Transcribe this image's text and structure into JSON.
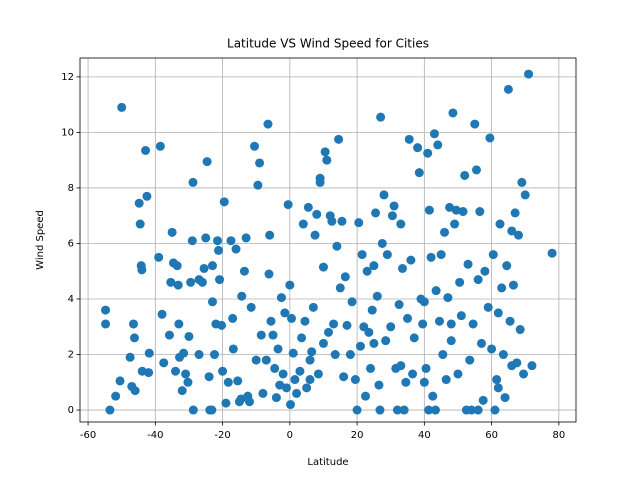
{
  "chart_data": {
    "type": "scatter",
    "title": "Latitude VS Wind Speed for Cities",
    "x_label": "Latitude",
    "y_label": "Wind Speed",
    "color": "#1f77b4",
    "grid": true,
    "xlim": [
      -62.4,
      85.1
    ],
    "ylim": [
      -0.43,
      12.68
    ],
    "xticks": [
      -60,
      -40,
      -20,
      0,
      20,
      40,
      60,
      80
    ],
    "yticks": [
      0,
      2,
      4,
      6,
      8,
      10,
      12
    ],
    "x": [
      -54.8,
      -54.8,
      -53.5,
      -51.8,
      -50.5,
      -50,
      -47.5,
      -47,
      -46.5,
      -46.2,
      -46,
      -44.8,
      -44.5,
      -44.2,
      -44,
      -43.9,
      -42.9,
      -42.5,
      -42,
      -41.8,
      -39,
      -38.5,
      -38,
      -37.5,
      -35.8,
      -35.4,
      -35,
      -34.6,
      -34,
      -33.5,
      -33.2,
      -33,
      -32.8,
      -32,
      -31.6,
      -31,
      -30.3,
      -30,
      -29.5,
      -29,
      -28.8,
      -28.7,
      -27,
      -26,
      -25.5,
      -25,
      -24.6,
      -24,
      -23.8,
      -23.2,
      -23,
      -22.4,
      -22,
      -21.5,
      -21.2,
      -20.9,
      -20.3,
      -20,
      -19.5,
      -19,
      -18.3,
      -17.5,
      -17,
      -16.8,
      -16,
      -15.5,
      -15,
      -14.5,
      -14.3,
      -13.5,
      -13,
      -12.5,
      -11.5,
      -10.5,
      -10,
      -9.5,
      -9,
      -8.5,
      -8,
      -7,
      -6.5,
      -6.2,
      -6,
      -5.6,
      -5,
      -4.5,
      -4,
      -3.5,
      -3,
      -2.5,
      -2,
      -1.5,
      -1,
      -0.5,
      0,
      0.2,
      0.5,
      1,
      1.5,
      2,
      3,
      3.5,
      4,
      4.5,
      5,
      5.5,
      6,
      6.5,
      7,
      7.5,
      8,
      8.5,
      9,
      9,
      10,
      10.5,
      11,
      11.5,
      12,
      12.5,
      13,
      13.5,
      14,
      14.5,
      15,
      15.5,
      16,
      16.5,
      17,
      18,
      18.5,
      19.5,
      20,
      20.5,
      21,
      21.5,
      22,
      22.5,
      23,
      23.5,
      24,
      24.5,
      25,
      25.5,
      26,
      26.5,
      26.8,
      27,
      27.5,
      28,
      28.5,
      29,
      30,
      30.5,
      31,
      31.5,
      32,
      32.5,
      33,
      33.5,
      34,
      34.5,
      35,
      35.5,
      36,
      36.5,
      37,
      38,
      38.5,
      39,
      39.5,
      40,
      40.5,
      41,
      41.3,
      41.5,
      42,
      42.5,
      43,
      43.3,
      43.5,
      44,
      44.5,
      45,
      45.5,
      46,
      46.5,
      47,
      47.5,
      48,
      48.5,
      49,
      49.5,
      50,
      50.5,
      51,
      51.5,
      52,
      52.5,
      53,
      53.5,
      54,
      54.5,
      55,
      55.5,
      56,
      56.5,
      57,
      57.5,
      58,
      59,
      59.5,
      60,
      60.5,
      61,
      61.5,
      62,
      62.5,
      63,
      63.5,
      64,
      64.5,
      65,
      65.5,
      66,
      66.5,
      67,
      67.5,
      68,
      68.5,
      69,
      69.5,
      70,
      71,
      72,
      78,
      -23,
      -12,
      6,
      33,
      48,
      56,
      62,
      66,
      40,
      -27,
      10,
      25
    ],
    "values": [
      3.6,
      3.1,
      0,
      0.5,
      1.05,
      10.9,
      1.9,
      0.85,
      3.1,
      2.6,
      0.7,
      7.45,
      6.7,
      5.2,
      5.05,
      1.4,
      9.35,
      7.7,
      1.35,
      2.05,
      5.5,
      9.5,
      3.45,
      1.7,
      2.7,
      4.6,
      6.4,
      5.3,
      1.4,
      5.2,
      4.5,
      3.1,
      1.9,
      0.7,
      2.05,
      1.3,
      1.0,
      2.65,
      4.6,
      6.1,
      8.2,
      0,
      4.7,
      4.6,
      5.1,
      6.2,
      8.95,
      1.2,
      0,
      0,
      5.2,
      2.0,
      3.1,
      6.1,
      5.75,
      4.7,
      3.05,
      1.4,
      7.5,
      0.25,
      1.0,
      6.1,
      3.3,
      2.2,
      5.8,
      1.05,
      0.3,
      0.4,
      4.1,
      5.0,
      6.2,
      0.5,
      3.7,
      9.5,
      1.8,
      8.1,
      8.9,
      2.7,
      0.6,
      1.8,
      10.3,
      4.9,
      6.3,
      3.2,
      2.7,
      1.5,
      0.45,
      2.2,
      0.9,
      4.05,
      1.3,
      3.5,
      0.8,
      7.4,
      4.5,
      0.2,
      3.3,
      2.05,
      1.1,
      0.6,
      1.4,
      2.6,
      6.7,
      3.2,
      0.8,
      7.3,
      1.1,
      2.1,
      3.7,
      6.3,
      7.05,
      1.3,
      8.35,
      8.2,
      5.15,
      9.3,
      9.0,
      2.8,
      7.0,
      6.8,
      3.1,
      2.0,
      5.9,
      9.75,
      4.4,
      6.8,
      1.2,
      4.8,
      3.05,
      2.0,
      3.9,
      1.1,
      0,
      6.75,
      2.3,
      5.6,
      3.0,
      0.5,
      5.0,
      2.8,
      1.5,
      3.6,
      5.2,
      7.1,
      4.1,
      0.9,
      0,
      10.55,
      6.0,
      7.75,
      2.5,
      5.6,
      3.0,
      7.0,
      7.35,
      1.5,
      0,
      3.8,
      6.7,
      5.1,
      0,
      1.0,
      3.3,
      9.75,
      5.4,
      1.3,
      2.6,
      9.45,
      8.55,
      4.0,
      3.1,
      1.0,
      1.5,
      9.25,
      0,
      7.2,
      5.5,
      0.5,
      9.95,
      0,
      4.3,
      9.55,
      3.2,
      5.6,
      2.0,
      6.4,
      1.1,
      4.05,
      7.3,
      3.1,
      10.7,
      6.7,
      7.2,
      1.3,
      4.6,
      3.4,
      7.15,
      8.45,
      0,
      5.25,
      1.8,
      0,
      3.1,
      10.3,
      8.65,
      4.7,
      7.15,
      2.4,
      0.35,
      5.0,
      3.7,
      9.8,
      2.2,
      5.6,
      0,
      1.1,
      3.5,
      6.7,
      4.4,
      2.0,
      0.45,
      5.2,
      11.55,
      3.2,
      6.45,
      4.5,
      7.1,
      1.7,
      6.3,
      2.9,
      8.2,
      1.3,
      7.75,
      12.1,
      1.6,
      5.65,
      3.9,
      0.3,
      1.8,
      1.6,
      2.5,
      0,
      0.8,
      1.6,
      3.9,
      2.0,
      2.4,
      2.4
    ]
  }
}
